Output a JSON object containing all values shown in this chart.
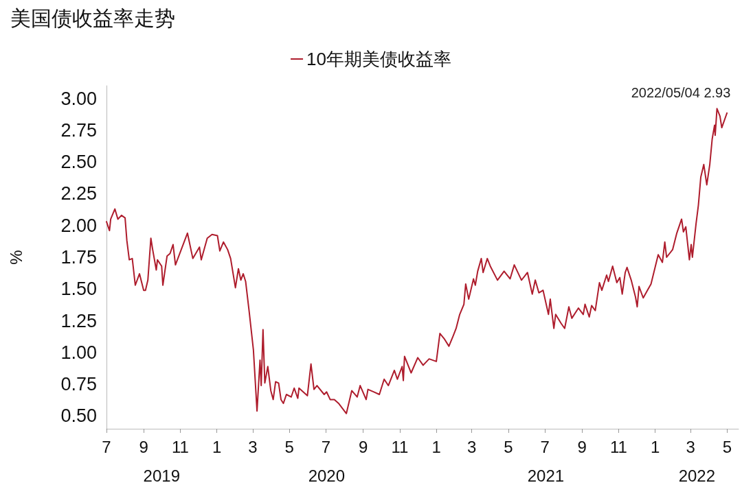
{
  "chart_data": {
    "type": "line",
    "title": "美国债收益率走势",
    "ylabel": "%",
    "legend": "top",
    "grid": false,
    "marker": "none",
    "line_style": "solid",
    "xlim": [
      "2019-07-01",
      "2022-05-20"
    ],
    "xticks": [
      {
        "value": "2019-07-01",
        "label": "7"
      },
      {
        "value": "2019-09-01",
        "label": "9"
      },
      {
        "value": "2019-11-01",
        "label": "11"
      },
      {
        "value": "2020-01-01",
        "label": "1"
      },
      {
        "value": "2020-03-01",
        "label": "3"
      },
      {
        "value": "2020-05-01",
        "label": "5"
      },
      {
        "value": "2020-07-01",
        "label": "7"
      },
      {
        "value": "2020-09-01",
        "label": "9"
      },
      {
        "value": "2020-11-01",
        "label": "11"
      },
      {
        "value": "2021-01-01",
        "label": "1"
      },
      {
        "value": "2021-03-01",
        "label": "3"
      },
      {
        "value": "2021-05-01",
        "label": "5"
      },
      {
        "value": "2021-07-01",
        "label": "7"
      },
      {
        "value": "2021-09-01",
        "label": "9"
      },
      {
        "value": "2021-11-01",
        "label": "11"
      },
      {
        "value": "2022-01-01",
        "label": "1"
      },
      {
        "value": "2022-03-01",
        "label": "3"
      },
      {
        "value": "2022-05-01",
        "label": "5"
      }
    ],
    "ylim": [
      0.4,
      3.1
    ],
    "yticks": [
      {
        "value": 0.5,
        "label": "0.50"
      },
      {
        "value": 0.75,
        "label": "0.75"
      },
      {
        "value": 1,
        "label": "1.00"
      },
      {
        "value": 1.25,
        "label": "1.25"
      },
      {
        "value": 1.5,
        "label": "1.50"
      },
      {
        "value": 1.75,
        "label": "1.75"
      },
      {
        "value": 2,
        "label": "2.00"
      },
      {
        "value": 2.25,
        "label": "2.25"
      },
      {
        "value": 2.5,
        "label": "2.50"
      },
      {
        "value": 2.75,
        "label": "2.75"
      },
      {
        "value": 3,
        "label": "3.00"
      }
    ],
    "annotations": [
      "2019",
      "2020",
      "2021",
      "2022",
      {
        "text": "2022/05/04 2.93",
        "x": "2022-05-04",
        "y": 2.93
      }
    ],
    "series": [
      {
        "name": "10年期美债收益率",
        "color": "#ae1c2c",
        "x": [
          "2019-07-01",
          "2019-07-06",
          "2019-07-08",
          "2019-07-15",
          "2019-07-20",
          "2019-07-26",
          "2019-08-01",
          "2019-08-04",
          "2019-08-08",
          "2019-08-13",
          "2019-08-18",
          "2019-08-25",
          "2019-09-01",
          "2019-09-04",
          "2019-09-08",
          "2019-09-13",
          "2019-09-16",
          "2019-09-22",
          "2019-09-24",
          "2019-10-01",
          "2019-10-03",
          "2019-10-10",
          "2019-10-15",
          "2019-10-20",
          "2019-10-24",
          "2019-11-13",
          "2019-11-22",
          "2019-12-03",
          "2019-12-06",
          "2019-12-16",
          "2019-12-24",
          "2020-01-02",
          "2020-01-06",
          "2020-01-12",
          "2020-01-19",
          "2020-01-24",
          "2020-02-01",
          "2020-02-06",
          "2020-02-10",
          "2020-02-14",
          "2020-02-18",
          "2020-02-24",
          "2020-03-02",
          "2020-03-08",
          "2020-03-13",
          "2020-03-15",
          "2020-03-18",
          "2020-03-21",
          "2020-03-26",
          "2020-03-31",
          "2020-04-04",
          "2020-04-08",
          "2020-04-13",
          "2020-04-17",
          "2020-04-21",
          "2020-04-26",
          "2020-05-04",
          "2020-05-09",
          "2020-05-15",
          "2020-05-17",
          "2020-05-31",
          "2020-06-06",
          "2020-06-11",
          "2020-06-16",
          "2020-06-28",
          "2020-07-02",
          "2020-07-08",
          "2020-07-15",
          "2020-07-22",
          "2020-08-04",
          "2020-08-13",
          "2020-08-22",
          "2020-08-27",
          "2020-09-06",
          "2020-09-09",
          "2020-09-19",
          "2020-09-28",
          "2020-10-06",
          "2020-10-13",
          "2020-10-23",
          "2020-10-28",
          "2020-11-05",
          "2020-11-07",
          "2020-11-09",
          "2020-11-20",
          "2020-12-01",
          "2020-12-10",
          "2020-12-20",
          "2021-01-01",
          "2021-01-07",
          "2021-01-14",
          "2021-01-22",
          "2021-01-29",
          "2021-02-03",
          "2021-02-09",
          "2021-02-16",
          "2021-02-19",
          "2021-02-24",
          "2021-03-04",
          "2021-03-07",
          "2021-03-11",
          "2021-03-17",
          "2021-03-20",
          "2021-03-27",
          "2021-04-01",
          "2021-04-13",
          "2021-04-24",
          "2021-05-04",
          "2021-05-11",
          "2021-05-23",
          "2021-06-02",
          "2021-06-10",
          "2021-06-15",
          "2021-06-21",
          "2021-06-28",
          "2021-07-07",
          "2021-07-10",
          "2021-07-16",
          "2021-07-19",
          "2021-07-28",
          "2021-08-03",
          "2021-08-10",
          "2021-08-15",
          "2021-08-26",
          "2021-09-03",
          "2021-09-06",
          "2021-09-13",
          "2021-09-17",
          "2021-09-23",
          "2021-09-30",
          "2021-10-04",
          "2021-10-12",
          "2021-10-15",
          "2021-10-22",
          "2021-10-29",
          "2021-11-03",
          "2021-11-07",
          "2021-11-12",
          "2021-11-15",
          "2021-11-22",
          "2021-11-29",
          "2021-12-02",
          "2021-12-05",
          "2021-12-12",
          "2021-12-19",
          "2021-12-25",
          "2022-01-06",
          "2022-01-13",
          "2022-01-17",
          "2022-01-20",
          "2022-01-30",
          "2022-02-06",
          "2022-02-14",
          "2022-02-17",
          "2022-02-21",
          "2022-02-27",
          "2022-03-02",
          "2022-03-04",
          "2022-03-10",
          "2022-03-14",
          "2022-03-18",
          "2022-03-23",
          "2022-03-28",
          "2022-04-02",
          "2022-04-06",
          "2022-04-10",
          "2022-04-11",
          "2022-04-14",
          "2022-04-19",
          "2022-04-22",
          "2022-05-04"
        ],
        "values": [
          2.03,
          1.96,
          2.05,
          2.13,
          2.05,
          2.08,
          2.06,
          1.88,
          1.73,
          1.74,
          1.53,
          1.62,
          1.49,
          1.49,
          1.57,
          1.9,
          1.81,
          1.65,
          1.73,
          1.68,
          1.53,
          1.76,
          1.78,
          1.85,
          1.69,
          1.94,
          1.74,
          1.83,
          1.73,
          1.9,
          1.93,
          1.92,
          1.8,
          1.87,
          1.81,
          1.74,
          1.51,
          1.66,
          1.57,
          1.62,
          1.56,
          1.32,
          1.02,
          0.54,
          0.94,
          0.74,
          1.18,
          0.76,
          0.89,
          0.7,
          0.63,
          0.77,
          0.76,
          0.63,
          0.6,
          0.67,
          0.65,
          0.72,
          0.64,
          0.72,
          0.66,
          0.91,
          0.71,
          0.74,
          0.67,
          0.69,
          0.63,
          0.63,
          0.6,
          0.52,
          0.7,
          0.65,
          0.74,
          0.63,
          0.71,
          0.69,
          0.67,
          0.79,
          0.74,
          0.86,
          0.79,
          0.89,
          0.78,
          0.97,
          0.84,
          0.96,
          0.9,
          0.95,
          0.93,
          1.15,
          1.11,
          1.05,
          1.13,
          1.19,
          1.3,
          1.38,
          1.54,
          1.42,
          1.58,
          1.53,
          1.64,
          1.74,
          1.63,
          1.74,
          1.68,
          1.57,
          1.64,
          1.58,
          1.69,
          1.57,
          1.63,
          1.46,
          1.57,
          1.47,
          1.49,
          1.3,
          1.42,
          1.19,
          1.3,
          1.23,
          1.19,
          1.36,
          1.27,
          1.35,
          1.3,
          1.38,
          1.28,
          1.37,
          1.33,
          1.55,
          1.49,
          1.61,
          1.56,
          1.68,
          1.55,
          1.59,
          1.46,
          1.63,
          1.67,
          1.57,
          1.44,
          1.36,
          1.52,
          1.43,
          1.49,
          1.54,
          1.77,
          1.71,
          1.87,
          1.75,
          1.81,
          1.94,
          2.05,
          1.95,
          1.99,
          1.73,
          1.85,
          1.75,
          2.01,
          2.16,
          2.38,
          2.48,
          2.32,
          2.48,
          2.68,
          2.79,
          2.71,
          2.92,
          2.86,
          2.77,
          2.93
        ]
      }
    ]
  }
}
